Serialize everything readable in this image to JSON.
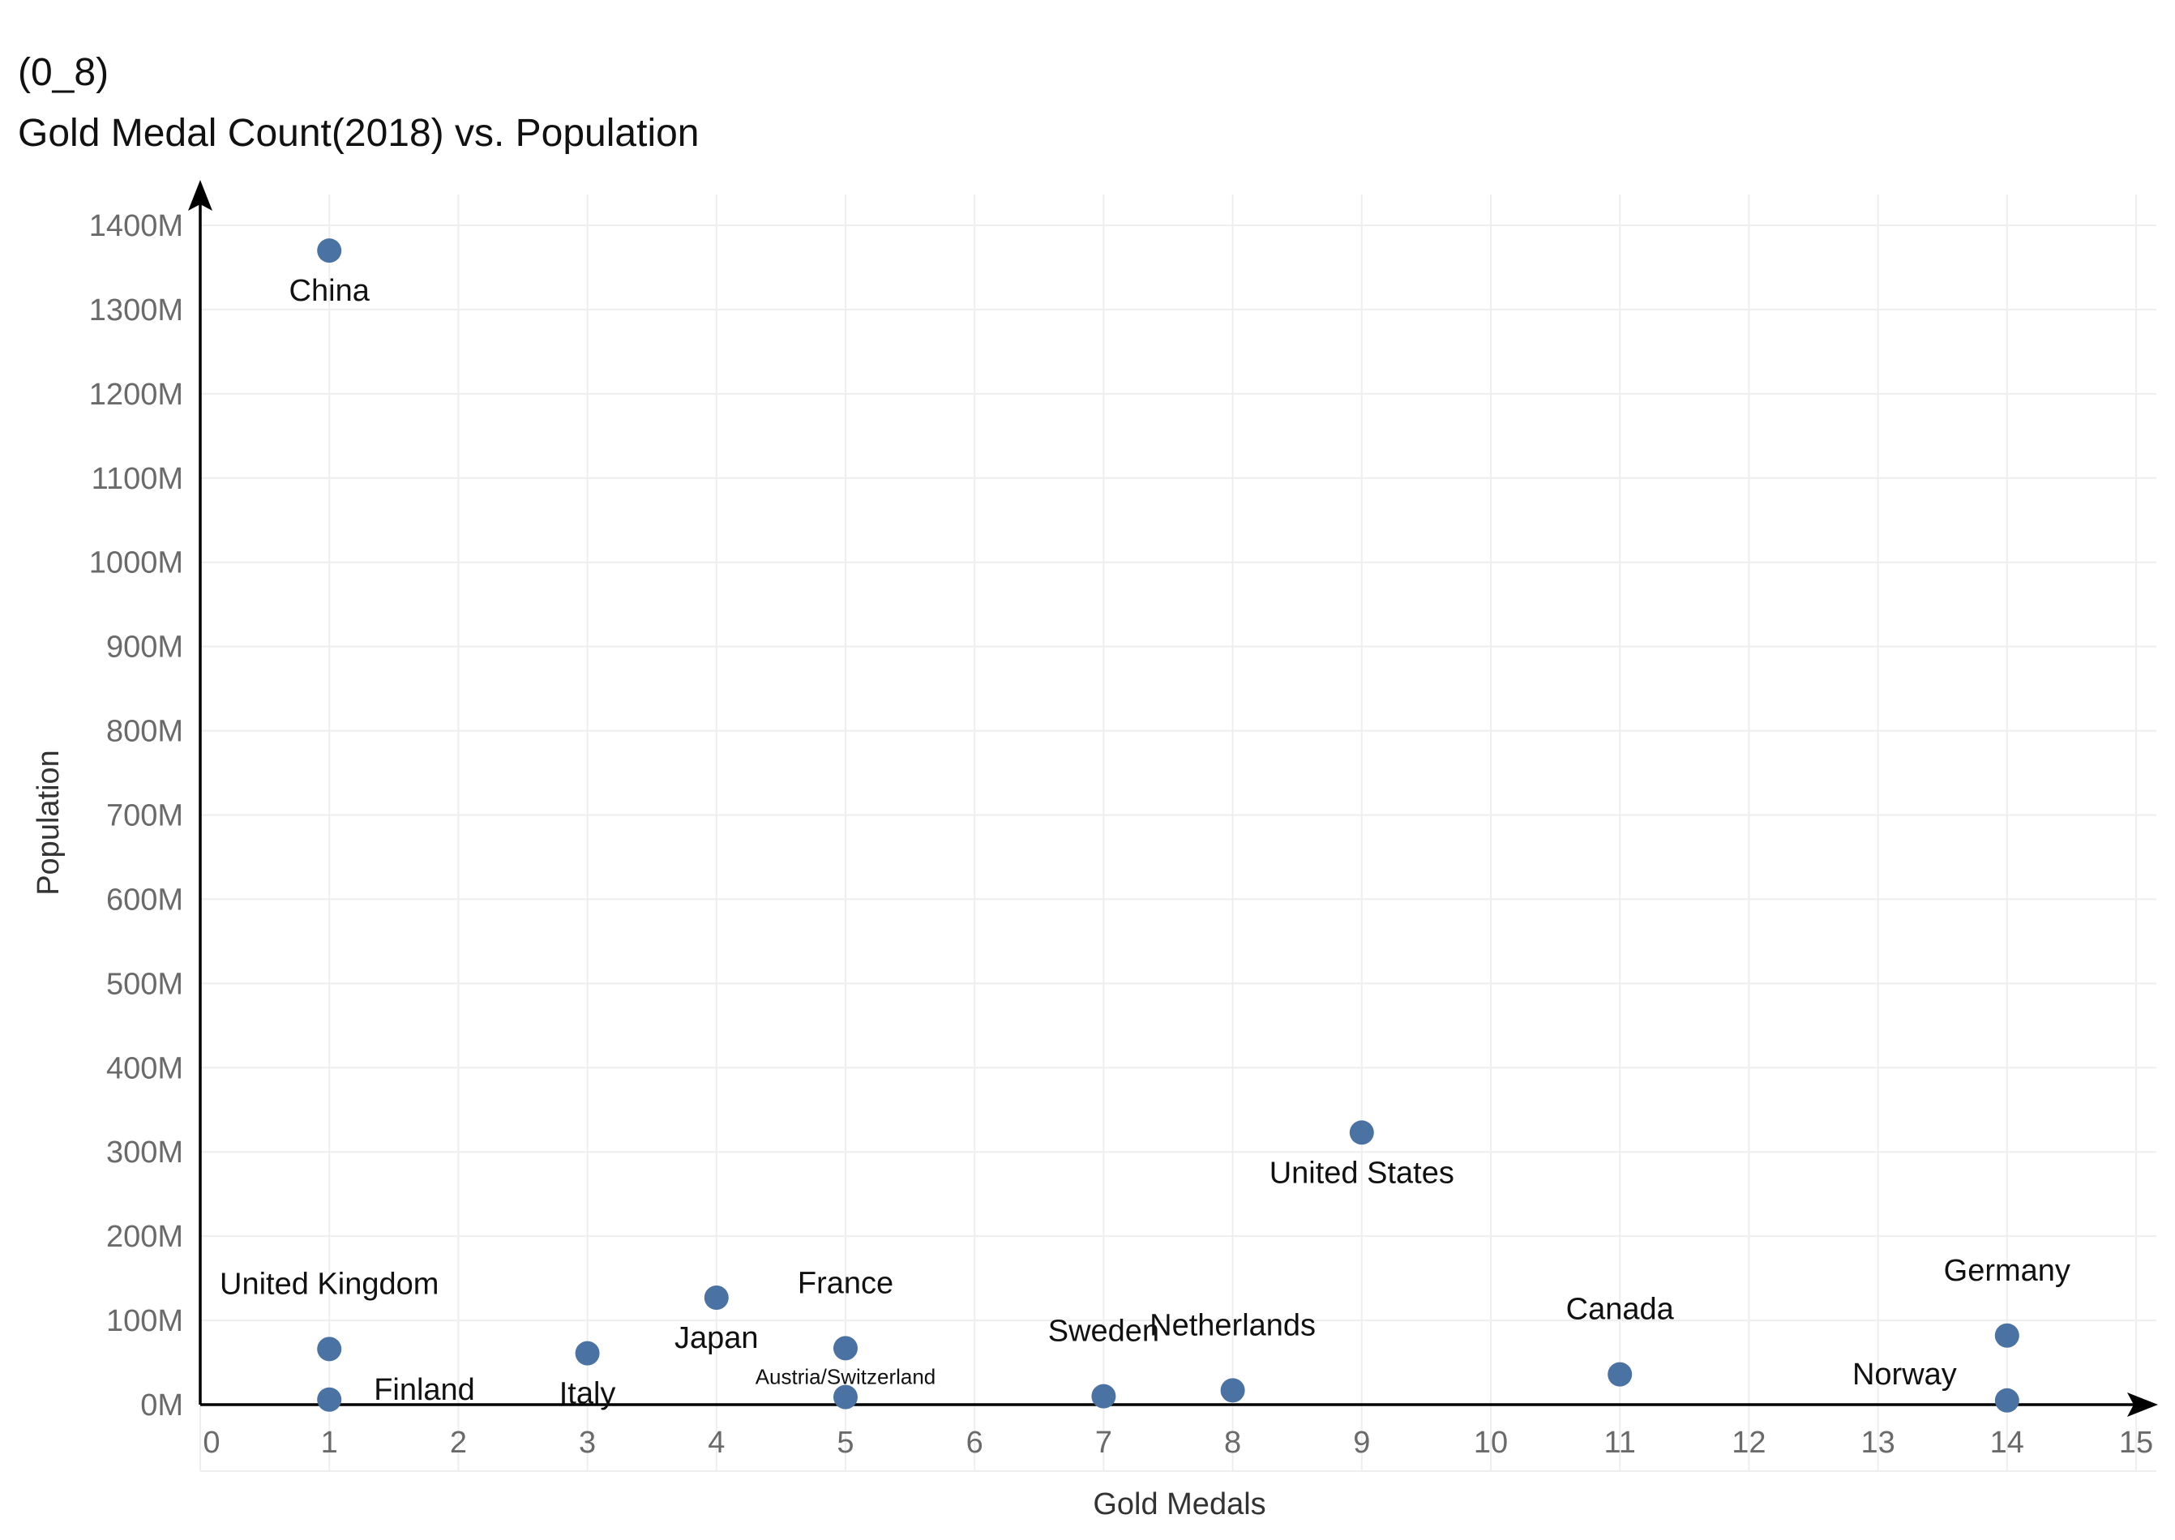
{
  "chart_data": {
    "type": "scatter",
    "title_lines": [
      "(0_8)",
      "Gold Medal Count(2018) vs. Population"
    ],
    "xlabel": "Gold Medals",
    "ylabel": "Population",
    "xlim": [
      0,
      15
    ],
    "ylim": [
      0,
      1400
    ],
    "x_ticks": [
      0,
      1,
      2,
      3,
      4,
      5,
      6,
      7,
      8,
      9,
      10,
      11,
      12,
      13,
      14,
      15
    ],
    "x_tick_labels": [
      "0",
      "1",
      "2",
      "3",
      "4",
      "5",
      "6",
      "7",
      "8",
      "9",
      "10",
      "11",
      "12",
      "13",
      "14",
      "15"
    ],
    "y_ticks": [
      0,
      100,
      200,
      300,
      400,
      500,
      600,
      700,
      800,
      900,
      1000,
      1100,
      1200,
      1300,
      1400
    ],
    "y_tick_labels": [
      "0M",
      "100M",
      "200M",
      "300M",
      "400M",
      "500M",
      "600M",
      "700M",
      "800M",
      "900M",
      "1000M",
      "1100M",
      "1200M",
      "1300M",
      "1400M"
    ],
    "grid": true,
    "point_color": "#4a72a3",
    "points": [
      {
        "label": "China",
        "x": 1,
        "y": 1370,
        "label_pos": "below"
      },
      {
        "label": "United Kingdom",
        "x": 1,
        "y": 66,
        "label_pos": "above"
      },
      {
        "label": "Finland",
        "x": 1,
        "y": 6,
        "label_pos": "right"
      },
      {
        "label": "Italy",
        "x": 3,
        "y": 61,
        "label_pos": "below"
      },
      {
        "label": "Japan",
        "x": 4,
        "y": 127,
        "label_pos": "below"
      },
      {
        "label": "France",
        "x": 5,
        "y": 67,
        "label_pos": "above"
      },
      {
        "label": "Austria/Switzerland",
        "x": 5,
        "y": 9,
        "label_pos": "above",
        "small": true
      },
      {
        "label": "Sweden",
        "x": 7,
        "y": 10,
        "label_pos": "above"
      },
      {
        "label": "Netherlands",
        "x": 8,
        "y": 17,
        "label_pos": "above"
      },
      {
        "label": "United States",
        "x": 9,
        "y": 323,
        "label_pos": "below"
      },
      {
        "label": "Canada",
        "x": 11,
        "y": 36,
        "label_pos": "above"
      },
      {
        "label": "Germany",
        "x": 14,
        "y": 82,
        "label_pos": "above"
      },
      {
        "label": "Norway",
        "x": 14,
        "y": 5,
        "label_pos": "above-left"
      }
    ]
  }
}
